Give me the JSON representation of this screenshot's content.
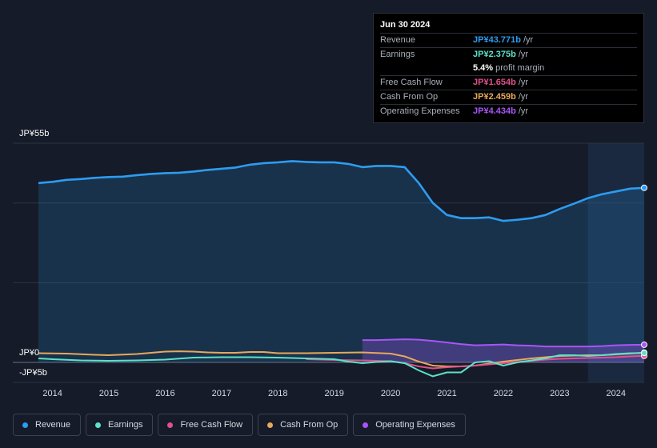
{
  "tooltip": {
    "date": "Jun 30 2024",
    "rows": [
      {
        "label": "Revenue",
        "value": "JP¥43.771b",
        "unit": "/yr",
        "color": "#2d9cf0"
      },
      {
        "label": "Earnings",
        "value": "JP¥2.375b",
        "unit": "/yr",
        "color": "#5ee0c8"
      },
      {
        "label": "",
        "value": "5.4%",
        "unit": "profit margin",
        "color": "#ffffff"
      },
      {
        "label": "Free Cash Flow",
        "value": "JP¥1.654b",
        "unit": "/yr",
        "color": "#e0508a"
      },
      {
        "label": "Cash From Op",
        "value": "JP¥2.459b",
        "unit": "/yr",
        "color": "#e8a85c"
      },
      {
        "label": "Operating Expenses",
        "value": "JP¥4.434b",
        "unit": "/yr",
        "color": "#a855f7"
      }
    ]
  },
  "legend": [
    {
      "label": "Revenue",
      "color": "#2d9cf0"
    },
    {
      "label": "Earnings",
      "color": "#5ee0c8"
    },
    {
      "label": "Free Cash Flow",
      "color": "#e0508a"
    },
    {
      "label": "Cash From Op",
      "color": "#e8a85c"
    },
    {
      "label": "Operating Expenses",
      "color": "#a855f7"
    }
  ],
  "chart_data": {
    "type": "line",
    "title": "",
    "y_unit": "JP¥ billions",
    "ylim": [
      -5,
      55
    ],
    "xlim": [
      2013.75,
      2024.5
    ],
    "y_tick_labels": [
      "JP¥55b",
      "JP¥0",
      "-JP¥5b"
    ],
    "x_tick_labels": [
      "2014",
      "2015",
      "2016",
      "2017",
      "2018",
      "2019",
      "2020",
      "2021",
      "2022",
      "2023",
      "2024"
    ],
    "highlight_range": [
      2023.5,
      2024.5
    ],
    "series": [
      {
        "name": "Revenue",
        "color": "#2d9cf0",
        "area": true,
        "x": [
          2013.75,
          2014.0,
          2014.25,
          2014.5,
          2014.75,
          2015.0,
          2015.25,
          2015.5,
          2015.75,
          2016.0,
          2016.25,
          2016.5,
          2016.75,
          2017.0,
          2017.25,
          2017.5,
          2017.75,
          2018.0,
          2018.25,
          2018.5,
          2018.75,
          2019.0,
          2019.25,
          2019.5,
          2019.75,
          2020.0,
          2020.25,
          2020.5,
          2020.75,
          2021.0,
          2021.25,
          2021.5,
          2021.75,
          2022.0,
          2022.25,
          2022.5,
          2022.75,
          2023.0,
          2023.25,
          2023.5,
          2023.75,
          2024.0,
          2024.25,
          2024.5
        ],
        "values": [
          45.0,
          45.3,
          45.8,
          46.0,
          46.3,
          46.5,
          46.6,
          47.0,
          47.3,
          47.5,
          47.6,
          47.9,
          48.3,
          48.6,
          48.9,
          49.6,
          50.0,
          50.2,
          50.5,
          50.3,
          50.2,
          50.2,
          49.8,
          49.0,
          49.3,
          49.3,
          49.0,
          45.0,
          40.0,
          37.0,
          36.2,
          36.2,
          36.4,
          35.5,
          35.8,
          36.2,
          37.0,
          38.5,
          39.8,
          41.2,
          42.2,
          42.9,
          43.6,
          43.8
        ]
      },
      {
        "name": "Earnings",
        "color": "#5ee0c8",
        "area": false,
        "x": [
          2013.75,
          2014.0,
          2014.5,
          2015.0,
          2015.5,
          2016.0,
          2016.5,
          2017.0,
          2017.5,
          2018.0,
          2018.5,
          2019.0,
          2019.25,
          2019.5,
          2019.75,
          2020.0,
          2020.25,
          2020.5,
          2020.75,
          2021.0,
          2021.25,
          2021.5,
          2021.75,
          2022.0,
          2022.25,
          2022.5,
          2022.75,
          2023.0,
          2023.25,
          2023.5,
          2023.75,
          2024.0,
          2024.25,
          2024.5
        ],
        "values": [
          1.0,
          0.8,
          0.5,
          0.4,
          0.5,
          0.7,
          1.2,
          1.3,
          1.3,
          1.2,
          1.0,
          0.8,
          0.2,
          -0.2,
          0.1,
          0.3,
          -0.2,
          -2.0,
          -3.5,
          -2.5,
          -2.5,
          0.0,
          0.3,
          -0.8,
          0.0,
          0.5,
          1.0,
          1.8,
          1.8,
          1.6,
          1.8,
          2.1,
          2.3,
          2.375
        ]
      },
      {
        "name": "Free Cash Flow",
        "color": "#e0508a",
        "area": false,
        "x": [
          2018.5,
          2019.0,
          2019.5,
          2020.0,
          2020.25,
          2020.5,
          2020.75,
          2021.0,
          2021.25,
          2021.5,
          2021.75,
          2022.0,
          2022.25,
          2022.5,
          2022.75,
          2023.0,
          2023.25,
          2023.5,
          2023.75,
          2024.0,
          2024.25,
          2024.5
        ],
        "values": [
          0.8,
          0.6,
          0.5,
          0.3,
          -0.2,
          -1.0,
          -1.5,
          -1.2,
          -1.0,
          -0.8,
          -0.5,
          -0.2,
          0.1,
          0.4,
          0.7,
          0.9,
          1.0,
          1.1,
          1.2,
          1.3,
          1.5,
          1.654
        ]
      },
      {
        "name": "Cash From Op",
        "color": "#e8a85c",
        "area": false,
        "x": [
          2013.75,
          2014.25,
          2014.75,
          2015.0,
          2015.5,
          2016.0,
          2016.25,
          2016.5,
          2016.75,
          2017.0,
          2017.25,
          2017.5,
          2017.75,
          2018.0,
          2018.5,
          2019.0,
          2019.5,
          2020.0,
          2020.25,
          2020.5,
          2020.75,
          2021.0,
          2021.25,
          2021.5,
          2021.75,
          2022.0,
          2022.25,
          2022.5,
          2022.75,
          2023.0,
          2023.25,
          2023.5,
          2023.75,
          2024.0,
          2024.25,
          2024.5
        ],
        "values": [
          2.3,
          2.2,
          1.9,
          1.8,
          2.1,
          2.7,
          2.8,
          2.7,
          2.5,
          2.4,
          2.4,
          2.6,
          2.6,
          2.3,
          2.3,
          2.4,
          2.5,
          2.2,
          1.5,
          0.2,
          -0.8,
          -1.0,
          -1.0,
          -0.8,
          -0.3,
          0.2,
          0.6,
          1.0,
          1.3,
          1.6,
          1.7,
          1.8,
          1.8,
          2.0,
          2.2,
          2.459
        ]
      },
      {
        "name": "Operating Expenses",
        "color": "#a855f7",
        "area": true,
        "x": [
          2019.5,
          2019.75,
          2020.0,
          2020.25,
          2020.5,
          2020.75,
          2021.0,
          2021.25,
          2021.5,
          2021.75,
          2022.0,
          2022.25,
          2022.5,
          2022.75,
          2023.0,
          2023.25,
          2023.5,
          2023.75,
          2024.0,
          2024.25,
          2024.5
        ],
        "values": [
          5.6,
          5.6,
          5.7,
          5.8,
          5.7,
          5.4,
          5.0,
          4.6,
          4.3,
          4.4,
          4.5,
          4.3,
          4.2,
          4.0,
          4.0,
          4.0,
          4.0,
          4.1,
          4.3,
          4.4,
          4.434
        ]
      }
    ]
  }
}
